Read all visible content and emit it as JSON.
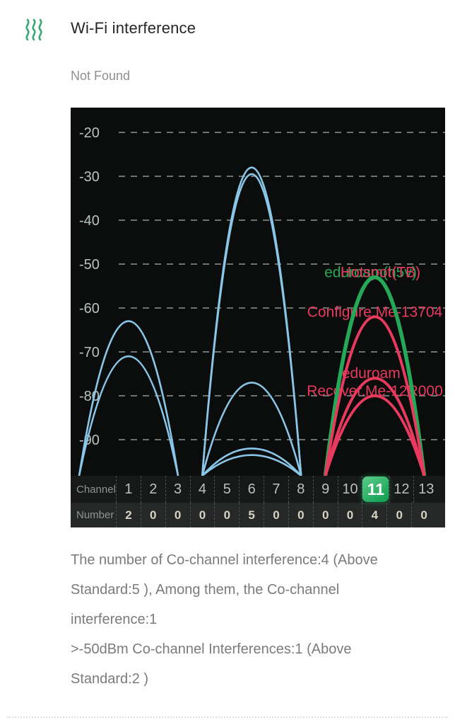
{
  "header": {
    "title": "Wi-Fi interference"
  },
  "status": {
    "text": "Not Found"
  },
  "colors": {
    "blue": "#8ac6e8",
    "red": "#e73a5e",
    "green": "#25a857",
    "chart_bg": "#0b0d0c",
    "grid": "#7d8784",
    "axis_text": "#b7c4c1",
    "badge_green_top": "#5bcd87",
    "badge_green_bottom": "#0f9b51"
  },
  "chart_data": {
    "type": "area",
    "title": "",
    "xlabel": "Channel",
    "ylabel": "",
    "ylim": [
      -100,
      -15
    ],
    "grid": "dashed-horizontal",
    "y_ticks": [
      -20,
      -30,
      -40,
      -50,
      -60,
      -70,
      -80,
      -90
    ],
    "channel_row_label": "Channel",
    "number_row_label": "Number",
    "channels": [
      1,
      2,
      3,
      4,
      5,
      6,
      7,
      8,
      9,
      10,
      11,
      12,
      13
    ],
    "counts": [
      2,
      0,
      0,
      0,
      0,
      5,
      0,
      0,
      0,
      0,
      4,
      0,
      0
    ],
    "selected_channel": 11,
    "curves": [
      {
        "channel": 1,
        "peak_dbm": -63,
        "color": "blue"
      },
      {
        "channel": 1,
        "peak_dbm": -71,
        "color": "blue"
      },
      {
        "channel": 6,
        "peak_dbm": -28,
        "color": "blue"
      },
      {
        "channel": 6,
        "peak_dbm": -29.5,
        "color": "blue"
      },
      {
        "channel": 6,
        "peak_dbm": -77,
        "color": "blue"
      },
      {
        "channel": 6,
        "peak_dbm": -92,
        "color": "blue"
      },
      {
        "channel": 6,
        "peak_dbm": -93.5,
        "color": "blue"
      },
      {
        "channel": 11,
        "peak_dbm": -53,
        "color": "green",
        "ssid": "eduroam(h5v)"
      },
      {
        "channel": 11,
        "peak_dbm": -62,
        "color": "red",
        "ssid": "Configure.Me-13704"
      },
      {
        "channel": 11,
        "peak_dbm": -76,
        "color": "red",
        "ssid": "eduroam"
      },
      {
        "channel": 11,
        "peak_dbm": -80,
        "color": "red",
        "ssid": "Recover.Me-12R000"
      }
    ],
    "ssid_labels": [
      {
        "text": "eduroam(h5v)",
        "color": "green",
        "channel": 11,
        "dbm": -53,
        "dx": -6
      },
      {
        "text": "Hotspot(TB)",
        "color": "red",
        "channel": 11,
        "dbm": -53,
        "dx": 8
      },
      {
        "text": "Configure.Me-13704",
        "color": "red",
        "channel": 11,
        "dbm": -62,
        "dx": 0
      },
      {
        "text": "eduroam",
        "color": "red",
        "channel": 10.85,
        "dbm": -76,
        "dx": 0
      },
      {
        "text": "Recover.Me-12R000",
        "color": "red",
        "channel": 11,
        "dbm": -80,
        "dx": 0
      }
    ]
  },
  "summary": {
    "line1": "The number of Co-channel interference:4 (Above Standard:5 ), Among them, the Co-channel interference:1",
    "line2": ">-50dBm Co-channel Interferences:1 (Above Standard:2 )"
  }
}
